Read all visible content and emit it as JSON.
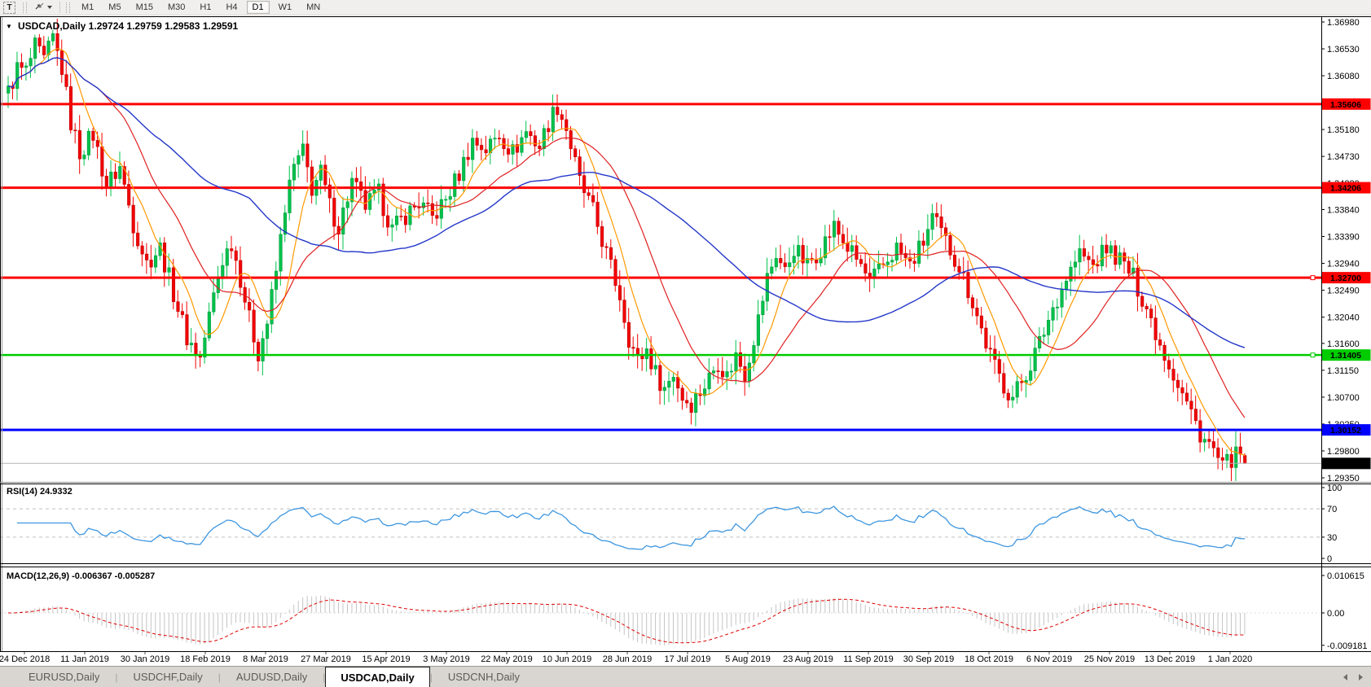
{
  "toolbar": {
    "text_tool_label": "T",
    "timeframes": [
      {
        "label": "M1",
        "active": false
      },
      {
        "label": "M5",
        "active": false
      },
      {
        "label": "M15",
        "active": false
      },
      {
        "label": "M30",
        "active": false
      },
      {
        "label": "H1",
        "active": false
      },
      {
        "label": "H4",
        "active": false
      },
      {
        "label": "D1",
        "active": true
      },
      {
        "label": "W1",
        "active": false
      },
      {
        "label": "MN",
        "active": false
      }
    ]
  },
  "window": {
    "title_line": "USDCAD,Daily 1.29724 1.29759 1.29583 1.29591",
    "symbol": "USDCAD",
    "period": "Daily",
    "ohlc": {
      "open": "1.29724",
      "high": "1.29759",
      "low": "1.29583",
      "close": "1.29591"
    }
  },
  "price_axis": {
    "ticks": [
      "1.36980",
      "1.36530",
      "1.36080",
      "1.35630",
      "1.35180",
      "1.34730",
      "1.34280",
      "1.33840",
      "1.33390",
      "1.32940",
      "1.32490",
      "1.32040",
      "1.31600",
      "1.31150",
      "1.30700",
      "1.30250",
      "1.29800",
      "1.29350"
    ]
  },
  "main_chart": {
    "hlines": [
      {
        "label": "1.35606",
        "price": 1.35606,
        "color": "#ff0000",
        "width": 3,
        "marker": false
      },
      {
        "label": "1.34206",
        "price": 1.34206,
        "color": "#ff0000",
        "width": 3,
        "marker": false
      },
      {
        "label": "1.32700",
        "price": 1.327,
        "color": "#ff0000",
        "width": 3,
        "marker": true
      },
      {
        "label": "1.31405",
        "price": 1.31405,
        "color": "#00cc00",
        "width": 2.5,
        "marker": true
      },
      {
        "label": "1.30152",
        "price": 1.30152,
        "color": "#0000ff",
        "width": 3,
        "marker": false
      }
    ],
    "current_price": {
      "label": "1.29591",
      "price": 1.29591,
      "line_color": "#b4b4b4",
      "tag_bg": "#000000"
    }
  },
  "rsi": {
    "label": "RSI(14) 24.9332",
    "period": 14,
    "last_value": 24.9332,
    "scale_labels": [
      {
        "text": "100",
        "value": 100
      },
      {
        "text": "70",
        "value": 70
      },
      {
        "text": "30",
        "value": 30
      },
      {
        "text": "0",
        "value": 0
      }
    ],
    "dashed_levels": [
      70,
      30
    ]
  },
  "macd": {
    "label": "MACD(12,26,9) -0.006367 -0.005287",
    "last_macd": -0.006367,
    "last_signal": -0.005287,
    "scale_labels": [
      {
        "text": "0.010615",
        "value": 0.010615
      },
      {
        "text": "0.00",
        "value": 0
      },
      {
        "text": "-0.009181",
        "value": -0.009181
      }
    ]
  },
  "date_axis": {
    "labels": [
      "24 Dec 2018",
      "11 Jan 2019",
      "30 Jan 2019",
      "18 Feb 2019",
      "8 Mar 2019",
      "27 Mar 2019",
      "15 Apr 2019",
      "3 May 2019",
      "22 May 2019",
      "10 Jun 2019",
      "28 Jun 2019",
      "17 Jul 2019",
      "5 Aug 2019",
      "23 Aug 2019",
      "11 Sep 2019",
      "30 Sep 2019",
      "18 Oct 2019",
      "6 Nov 2019",
      "25 Nov 2019",
      "13 Dec 2019",
      "1 Jan 2020"
    ]
  },
  "tabs": {
    "items": [
      "EURUSD,Daily",
      "USDCHF,Daily",
      "AUDUSD,Daily",
      "USDCAD,Daily",
      "USDCNH,Daily"
    ],
    "active_index": 3
  },
  "colors": {
    "bull": "#00c24b",
    "bull_border": "#009a3c",
    "bear": "#f20000",
    "bear_border": "#bf0000",
    "ma_fast": "#ff9900",
    "ma_mid": "#e02020",
    "ma_slow": "#2437c9",
    "rsi_line": "#3d96e0",
    "level_dash": "#c0c0c0",
    "macd_hist": "#c4c4c4",
    "macd_signal": "#e00000"
  },
  "chart_data": {
    "type": "candlestick",
    "symbol": "USDCAD",
    "timeframe": "Daily",
    "title": "USDCAD,Daily 1.29724 1.29759 1.29583 1.29591",
    "x_range": [
      "24 Dec 2018",
      "1 Jan 2020"
    ],
    "y_axis_ticks": [
      1.3698,
      1.3653,
      1.3608,
      1.3563,
      1.3518,
      1.3473,
      1.3428,
      1.3384,
      1.3339,
      1.3294,
      1.3249,
      1.3204,
      1.316,
      1.3115,
      1.307,
      1.3025,
      1.298,
      1.2935
    ],
    "support_resistance": [
      1.35606,
      1.34206,
      1.327,
      1.31405,
      1.30152
    ],
    "last_candle": {
      "open": 1.29724,
      "high": 1.29759,
      "low": 1.29583,
      "close": 1.29591
    },
    "indicators": [
      {
        "name": "RSI",
        "period": 14,
        "last_value": 24.9332,
        "range": [
          0,
          100
        ],
        "levels": [
          30,
          70
        ]
      },
      {
        "name": "MACD",
        "fast": 12,
        "slow": 26,
        "signal": 9,
        "last_macd": -0.006367,
        "last_signal": -0.005287,
        "scale_top": 0.010615,
        "scale_bottom": -0.009181
      }
    ],
    "bars_count": 278,
    "close_waypoints": [
      [
        0,
        1.358
      ],
      [
        2,
        1.362
      ],
      [
        4,
        1.3615
      ],
      [
        6,
        1.3655
      ],
      [
        8,
        1.3632
      ],
      [
        10,
        1.367
      ],
      [
        12,
        1.362
      ],
      [
        14,
        1.353
      ],
      [
        16,
        1.348
      ],
      [
        19,
        1.351
      ],
      [
        22,
        1.3425
      ],
      [
        25,
        1.3455
      ],
      [
        28,
        1.336
      ],
      [
        31,
        1.3295
      ],
      [
        34,
        1.332
      ],
      [
        37,
        1.3245
      ],
      [
        40,
        1.317
      ],
      [
        43,
        1.3135
      ],
      [
        46,
        1.324
      ],
      [
        48,
        1.33
      ],
      [
        50,
        1.333
      ],
      [
        52,
        1.327
      ],
      [
        54,
        1.32
      ],
      [
        56,
        1.3145
      ],
      [
        58,
        1.3195
      ],
      [
        60,
        1.328
      ],
      [
        62,
        1.339
      ],
      [
        64,
        1.3455
      ],
      [
        66,
        1.348
      ],
      [
        68,
        1.342
      ],
      [
        70,
        1.3445
      ],
      [
        72,
        1.339
      ],
      [
        74,
        1.3355
      ],
      [
        77,
        1.343
      ],
      [
        80,
        1.339
      ],
      [
        83,
        1.341
      ],
      [
        86,
        1.335
      ],
      [
        89,
        1.3375
      ],
      [
        92,
        1.3395
      ],
      [
        95,
        1.337
      ],
      [
        98,
        1.34
      ],
      [
        101,
        1.3445
      ],
      [
        104,
        1.35
      ],
      [
        107,
        1.3485
      ],
      [
        110,
        1.351
      ],
      [
        113,
        1.348
      ],
      [
        116,
        1.3515
      ],
      [
        119,
        1.349
      ],
      [
        121,
        1.353
      ],
      [
        123,
        1.3558
      ],
      [
        125,
        1.352
      ],
      [
        128,
        1.343
      ],
      [
        131,
        1.338
      ],
      [
        134,
        1.331
      ],
      [
        137,
        1.324
      ],
      [
        139,
        1.317
      ],
      [
        141,
        1.313
      ],
      [
        143,
        1.315
      ],
      [
        145,
        1.311
      ],
      [
        147,
        1.3085
      ],
      [
        149,
        1.311
      ],
      [
        151,
        1.307
      ],
      [
        153,
        1.306
      ],
      [
        156,
        1.309
      ],
      [
        159,
        1.313
      ],
      [
        161,
        1.3105
      ],
      [
        163,
        1.314
      ],
      [
        165,
        1.311
      ],
      [
        168,
        1.32
      ],
      [
        170,
        1.327
      ],
      [
        172,
        1.331
      ],
      [
        174,
        1.328
      ],
      [
        176,
        1.332
      ],
      [
        179,
        1.329
      ],
      [
        182,
        1.332
      ],
      [
        185,
        1.3355
      ],
      [
        188,
        1.332
      ],
      [
        191,
        1.329
      ],
      [
        193,
        1.326
      ],
      [
        196,
        1.329
      ],
      [
        199,
        1.332
      ],
      [
        202,
        1.329
      ],
      [
        205,
        1.333
      ],
      [
        207,
        1.337
      ],
      [
        210,
        1.333
      ],
      [
        213,
        1.329
      ],
      [
        216,
        1.323
      ],
      [
        219,
        1.316
      ],
      [
        221,
        1.312
      ],
      [
        223,
        1.309
      ],
      [
        225,
        1.307
      ],
      [
        228,
        1.311
      ],
      [
        231,
        1.316
      ],
      [
        234,
        1.322
      ],
      [
        237,
        1.327
      ],
      [
        240,
        1.331
      ],
      [
        243,
        1.329
      ],
      [
        246,
        1.332
      ],
      [
        249,
        1.33
      ],
      [
        252,
        1.327
      ],
      [
        255,
        1.322
      ],
      [
        258,
        1.316
      ],
      [
        261,
        1.311
      ],
      [
        264,
        1.306
      ],
      [
        267,
        1.301
      ],
      [
        270,
        1.298
      ],
      [
        272,
        1.295
      ],
      [
        274,
        1.2968
      ],
      [
        276,
        1.2972
      ],
      [
        277,
        1.29591
      ]
    ],
    "render_params": {
      "ma_periods": [
        8,
        21,
        55
      ]
    }
  }
}
